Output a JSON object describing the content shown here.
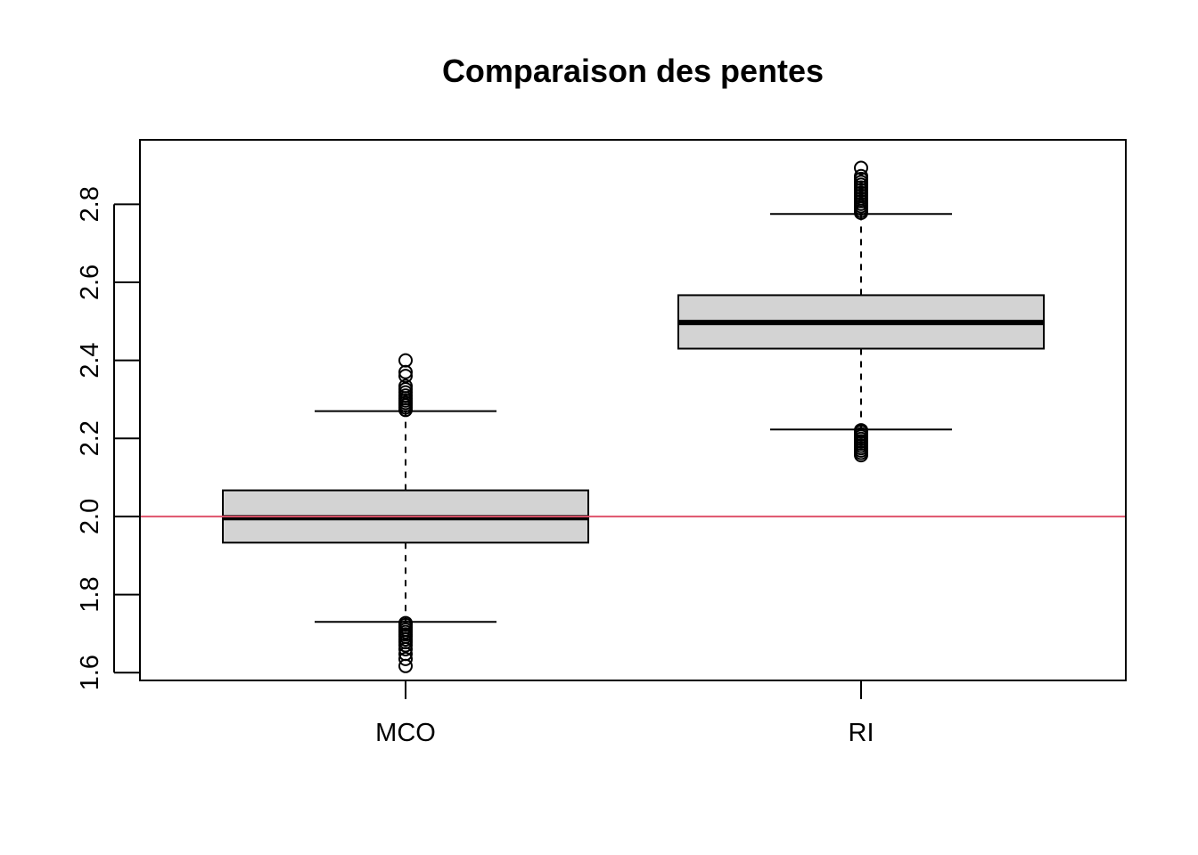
{
  "chart_data": {
    "type": "boxplot",
    "title": "Comparaison des pentes",
    "xlabel": "",
    "ylabel": "",
    "categories": [
      "MCO",
      "RI"
    ],
    "ylim": [
      1.58,
      2.965
    ],
    "yticks": [
      1.6,
      1.8,
      2.0,
      2.2,
      2.4,
      2.6,
      2.8
    ],
    "ytick_labels": [
      "1.6",
      "1.8",
      "2.0",
      "2.2",
      "2.4",
      "2.6",
      "2.8"
    ],
    "reference_line": {
      "y": 2.0,
      "color": "#DF536B"
    },
    "box_fill": "#D3D3D3",
    "grid": false,
    "boxes": [
      {
        "name": "MCO",
        "whisker_low": 1.73,
        "q1": 1.933,
        "median": 1.997,
        "q3": 2.067,
        "whisker_high": 2.27,
        "outliers_low": [
          1.617,
          1.635,
          1.648,
          1.66,
          1.67,
          1.678,
          1.685,
          1.692,
          1.698,
          1.704,
          1.71,
          1.716,
          1.722,
          1.727
        ],
        "outliers_high": [
          2.273,
          2.279,
          2.285,
          2.291,
          2.297,
          2.303,
          2.31,
          2.318,
          2.326,
          2.334,
          2.36,
          2.37,
          2.4
        ]
      },
      {
        "name": "RI",
        "whisker_low": 2.223,
        "q1": 2.43,
        "median": 2.497,
        "q3": 2.567,
        "whisker_high": 2.775,
        "outliers_low": [
          2.157,
          2.163,
          2.169,
          2.175,
          2.181,
          2.187,
          2.193,
          2.199,
          2.205,
          2.211,
          2.217,
          2.221
        ],
        "outliers_high": [
          2.778,
          2.783,
          2.789,
          2.795,
          2.801,
          2.808,
          2.815,
          2.822,
          2.829,
          2.836,
          2.843,
          2.85,
          2.857,
          2.865,
          2.872,
          2.893
        ]
      }
    ]
  }
}
